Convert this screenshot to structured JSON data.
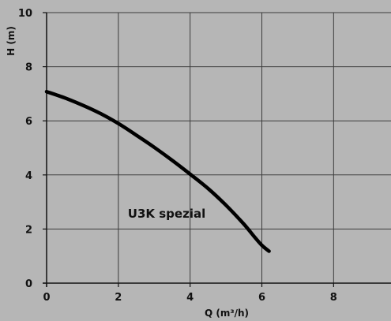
{
  "chart_data": {
    "type": "line",
    "xlabel": "Q (m³/h)",
    "ylabel": "H (m)",
    "xlim": [
      0,
      9.6
    ],
    "ylim": [
      0,
      10
    ],
    "x_ticks": [
      0,
      2,
      4,
      6,
      8
    ],
    "y_ticks": [
      0,
      2,
      4,
      6,
      8,
      10
    ],
    "grid": true,
    "annotation": "U3K spezial",
    "series": [
      {
        "x": [
          0,
          0.5,
          1.0,
          1.5,
          2.0,
          2.5,
          3.0,
          3.5,
          4.0,
          4.5,
          5.0,
          5.5,
          5.8,
          6.0,
          6.2
        ],
        "y": [
          7.08,
          6.85,
          6.58,
          6.27,
          5.9,
          5.47,
          5.02,
          4.54,
          4.03,
          3.5,
          2.88,
          2.18,
          1.7,
          1.4,
          1.18
        ]
      }
    ]
  },
  "colors": {
    "background": "#b6b6b6",
    "grid": "#3c3c3c",
    "curve": "#000000"
  }
}
